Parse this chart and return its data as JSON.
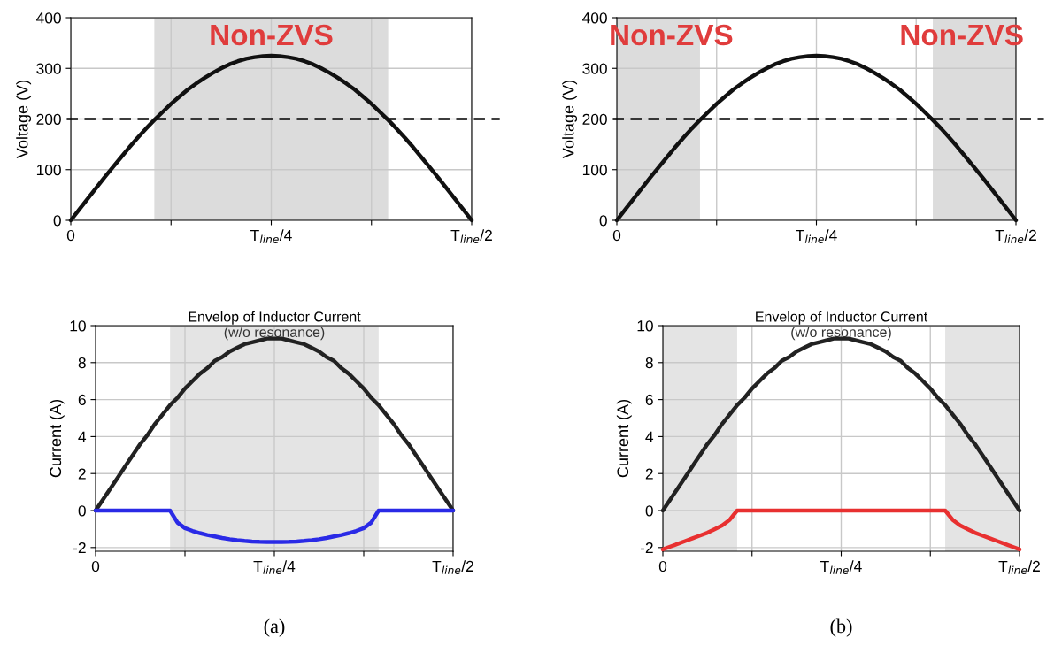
{
  "chart_data": [
    {
      "type": "line",
      "ylabel": "Voltage (V)",
      "ylim": [
        0,
        400
      ],
      "yticks": [
        0,
        100,
        200,
        300,
        400
      ],
      "grid": true,
      "categories": [
        "0",
        null,
        null,
        null,
        null,
        null,
        null,
        null,
        null,
        null,
        null,
        null,
        null,
        null,
        null,
        null,
        null,
        null,
        null,
        null,
        null,
        null,
        null,
        null,
        "T$_{line}$/4",
        null,
        null,
        null,
        null,
        null,
        null,
        null,
        null,
        null,
        null,
        null,
        null,
        null,
        null,
        null,
        null,
        null,
        null,
        null,
        null,
        null,
        null,
        null,
        "T$_{line}$/2"
      ],
      "series": [
        {
          "color": "#111111",
          "values": [
            0,
            21,
            42,
            63,
            84,
            104,
            124,
            144,
            163,
            181,
            198,
            214,
            230,
            244,
            258,
            270,
            281,
            291,
            300,
            308,
            314,
            319,
            322,
            324,
            325,
            324,
            322,
            319,
            314,
            308,
            300,
            291,
            281,
            270,
            258,
            244,
            230,
            214,
            198,
            181,
            163,
            144,
            124,
            104,
            84,
            63,
            42,
            21,
            0
          ]
        }
      ],
      "ref_lines": [
        {
          "axis": "y",
          "value": 200,
          "line_style": "dashed",
          "color": "#000000"
        }
      ],
      "annotations": [
        "Non-ZVS"
      ]
    },
    {
      "type": "line",
      "ylabel": "Voltage (V)",
      "ylim": [
        0,
        400
      ],
      "yticks": [
        0,
        100,
        200,
        300,
        400
      ],
      "grid": true,
      "categories": [
        "0",
        null,
        null,
        null,
        null,
        null,
        null,
        null,
        null,
        null,
        null,
        null,
        null,
        null,
        null,
        null,
        null,
        null,
        null,
        null,
        null,
        null,
        null,
        null,
        "T$_{line}$/4",
        null,
        null,
        null,
        null,
        null,
        null,
        null,
        null,
        null,
        null,
        null,
        null,
        null,
        null,
        null,
        null,
        null,
        null,
        null,
        null,
        null,
        null,
        null,
        "T$_{line}$/2"
      ],
      "series": [
        {
          "color": "#111111",
          "values": [
            0,
            21,
            42,
            63,
            84,
            104,
            124,
            144,
            163,
            181,
            198,
            214,
            230,
            244,
            258,
            270,
            281,
            291,
            300,
            308,
            314,
            319,
            322,
            324,
            325,
            324,
            322,
            319,
            314,
            308,
            300,
            291,
            281,
            270,
            258,
            244,
            230,
            214,
            198,
            181,
            163,
            144,
            124,
            104,
            84,
            63,
            42,
            21,
            0
          ]
        }
      ],
      "ref_lines": [
        {
          "axis": "y",
          "value": 200,
          "line_style": "dashed",
          "color": "#000000"
        }
      ],
      "annotations": [
        "Non-ZVS",
        "Non-ZVS"
      ]
    },
    {
      "type": "line",
      "title": "Envelop of Inductor Current",
      "subtitle": "(w/o resonance)",
      "ylabel": "Current (A)",
      "ylim": [
        -2.2,
        10
      ],
      "yticks": [
        -2,
        0,
        2,
        4,
        6,
        8,
        10
      ],
      "grid": true,
      "annotations": [
        "(a)"
      ],
      "categories": [
        "0",
        null,
        null,
        null,
        null,
        null,
        null,
        null,
        null,
        null,
        null,
        null,
        null,
        null,
        null,
        null,
        null,
        null,
        null,
        null,
        null,
        null,
        null,
        null,
        "T$_{line}$/4",
        null,
        null,
        null,
        null,
        null,
        null,
        null,
        null,
        null,
        null,
        null,
        null,
        null,
        null,
        null,
        null,
        null,
        null,
        null,
        null,
        null,
        null,
        null,
        "T$_{line}$/2"
      ],
      "series": [
        {
          "color": "#222222",
          "values": [
            0,
            0.6,
            1.2,
            1.8,
            2.4,
            3.0,
            3.6,
            4.1,
            4.7,
            5.2,
            5.7,
            6.1,
            6.6,
            7.0,
            7.4,
            7.7,
            8.1,
            8.3,
            8.6,
            8.8,
            9.0,
            9.1,
            9.2,
            9.3,
            9.3,
            9.3,
            9.2,
            9.1,
            9.0,
            8.8,
            8.6,
            8.3,
            8.1,
            7.7,
            7.4,
            7.0,
            6.6,
            6.1,
            5.7,
            5.2,
            4.7,
            4.1,
            3.6,
            3.0,
            2.4,
            1.8,
            1.2,
            0.6,
            0
          ]
        },
        {
          "color": "#2a2ae6",
          "values": [
            0,
            0,
            0,
            0,
            0,
            0,
            0,
            0,
            0,
            0,
            0,
            -0.65,
            -0.95,
            -1.1,
            -1.22,
            -1.32,
            -1.4,
            -1.48,
            -1.55,
            -1.6,
            -1.64,
            -1.67,
            -1.69,
            -1.7,
            -1.7,
            -1.7,
            -1.69,
            -1.67,
            -1.64,
            -1.6,
            -1.55,
            -1.48,
            -1.4,
            -1.32,
            -1.22,
            -1.1,
            -0.95,
            -0.65,
            0,
            0,
            0,
            0,
            0,
            0,
            0,
            0,
            0,
            0,
            0
          ]
        }
      ]
    },
    {
      "type": "line",
      "title": "Envelop of Inductor Current",
      "subtitle": "(w/o resonance)",
      "ylabel": "Current (A)",
      "ylim": [
        -2.2,
        10
      ],
      "yticks": [
        -2,
        0,
        2,
        4,
        6,
        8,
        10
      ],
      "grid": true,
      "annotations": [
        "(b)"
      ],
      "categories": [
        "0",
        null,
        null,
        null,
        null,
        null,
        null,
        null,
        null,
        null,
        null,
        null,
        null,
        null,
        null,
        null,
        null,
        null,
        null,
        null,
        null,
        null,
        null,
        null,
        "T$_{line}$/4",
        null,
        null,
        null,
        null,
        null,
        null,
        null,
        null,
        null,
        null,
        null,
        null,
        null,
        null,
        null,
        null,
        null,
        null,
        null,
        null,
        null,
        null,
        null,
        "T$_{line}$/2"
      ],
      "series": [
        {
          "color": "#222222",
          "values": [
            0,
            0.6,
            1.2,
            1.8,
            2.4,
            3.0,
            3.6,
            4.1,
            4.7,
            5.2,
            5.7,
            6.1,
            6.6,
            7.0,
            7.4,
            7.7,
            8.1,
            8.3,
            8.6,
            8.8,
            9.0,
            9.1,
            9.2,
            9.3,
            9.3,
            9.3,
            9.2,
            9.1,
            9.0,
            8.8,
            8.6,
            8.3,
            8.1,
            7.7,
            7.4,
            7.0,
            6.6,
            6.1,
            5.7,
            5.2,
            4.7,
            4.1,
            3.6,
            3.0,
            2.4,
            1.8,
            1.2,
            0.6,
            0
          ]
        },
        {
          "color": "#e83030",
          "values": [
            -2.1,
            -1.95,
            -1.8,
            -1.65,
            -1.5,
            -1.35,
            -1.2,
            -1.0,
            -0.8,
            -0.5,
            0,
            0,
            0,
            0,
            0,
            0,
            0,
            0,
            0,
            0,
            0,
            0,
            0,
            0,
            0,
            0,
            0,
            0,
            0,
            0,
            0,
            0,
            0,
            0,
            0,
            0,
            0,
            0,
            0,
            -0.5,
            -0.8,
            -1.0,
            -1.2,
            -1.35,
            -1.5,
            -1.65,
            -1.8,
            -1.95,
            -2.1
          ]
        }
      ]
    }
  ]
}
